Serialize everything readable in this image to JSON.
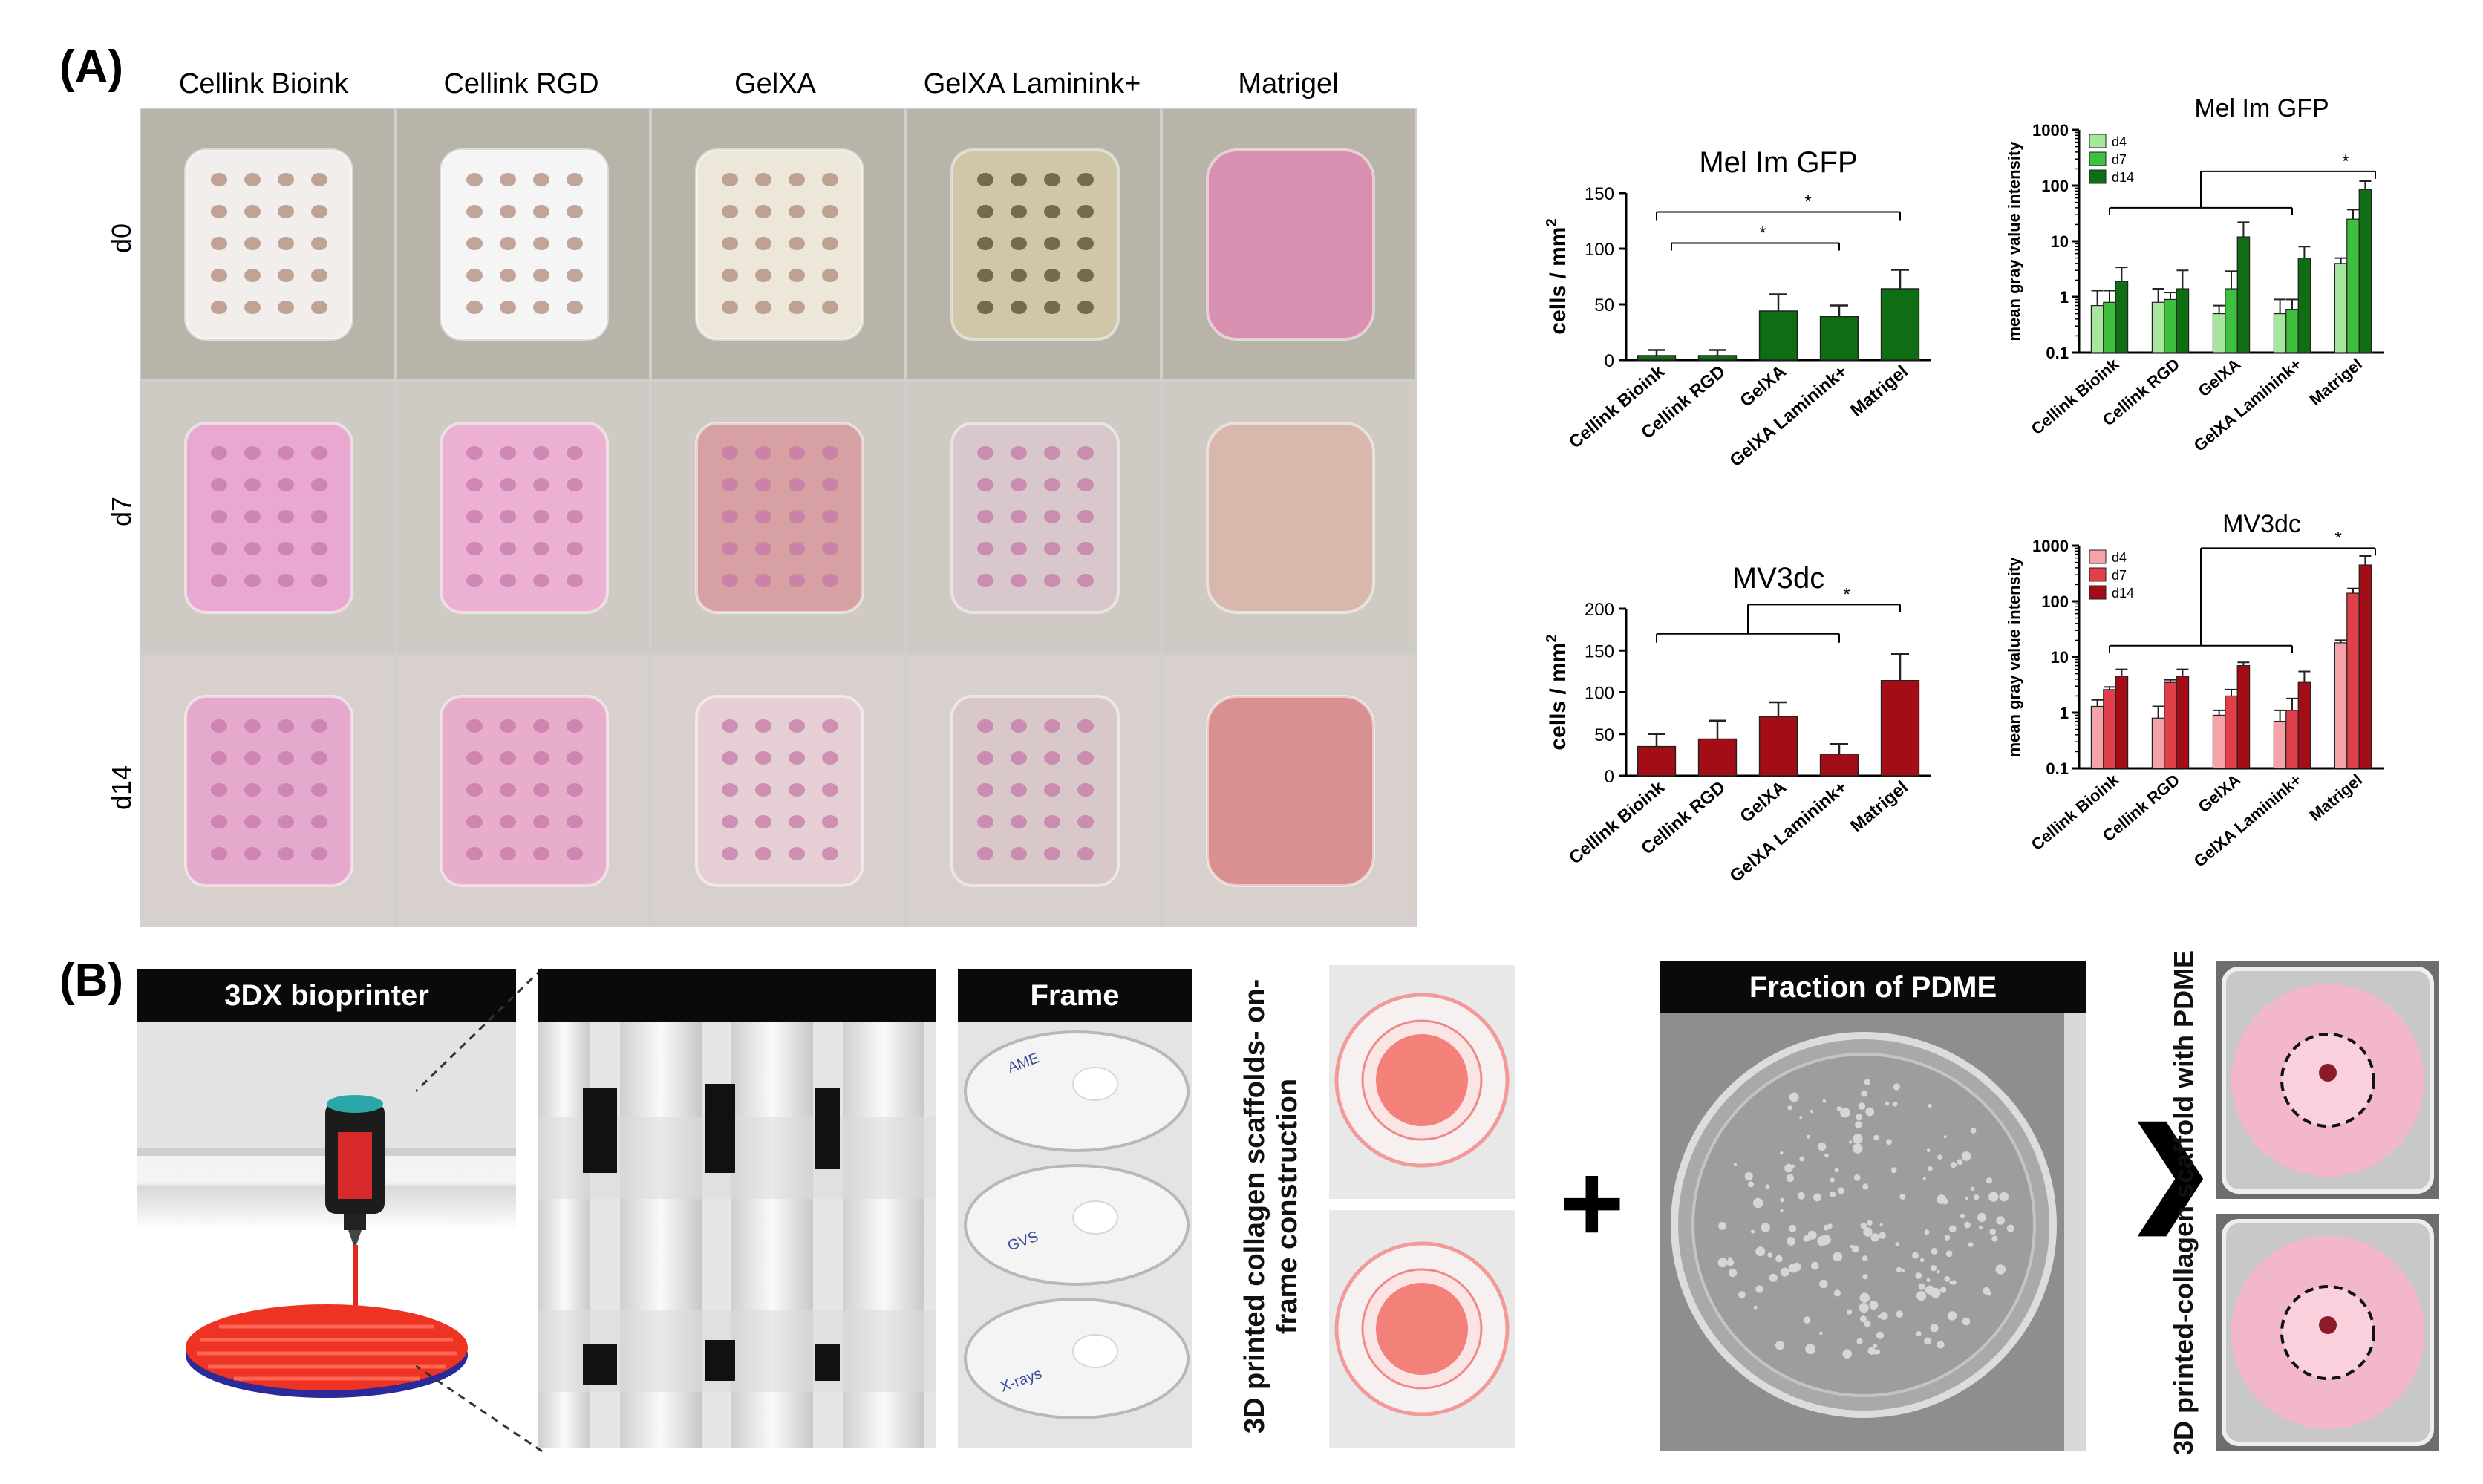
{
  "panel_a": {
    "label": "(A)",
    "columns": [
      "Cellink Bioink",
      "Cellink RGD",
      "GelXA",
      "GelXA Laminink+",
      "Matrigel"
    ],
    "rows": [
      "d0",
      "d7",
      "d14"
    ]
  },
  "panel_b": {
    "label": "(B)",
    "printer_header": "3DX bioprinter",
    "frame_header": "Frame",
    "construction_text": "3D printed collagen scaffolds- on-frame construction",
    "pdme_header": "Fraction of PDME",
    "plus": "+",
    "arrow": "❯",
    "result_text": "3D printed-collagen scaffold with PDME",
    "dish_notes": [
      "AME",
      "GVS",
      "X-rays"
    ]
  },
  "colors": {
    "green_light": "#a8e6a0",
    "green_mid": "#3fbf3f",
    "green_dark": "#0f6e14",
    "red_light": "#f4a3a8",
    "red_mid": "#e0404a",
    "red_dark": "#a30d16"
  },
  "chart_data": [
    {
      "type": "bar",
      "title": "Mel Im GFP",
      "ylabel": "cells / mm",
      "ylabel_sup": "2",
      "ylim": [
        0,
        150
      ],
      "yticks": [
        "0",
        "50",
        "100",
        "150"
      ],
      "categories": [
        "Cellink Bioink",
        "Cellink RGD",
        "GelXA",
        "GelXA Laminink+",
        "Matrigel"
      ],
      "values": [
        4,
        4,
        44,
        39,
        64
      ],
      "errors": [
        5,
        5,
        15,
        10,
        17
      ],
      "annotations": [
        "*",
        "*"
      ]
    },
    {
      "type": "bar",
      "title": "Mel Im GFP",
      "ylabel": "mean gray value intensity",
      "yscale": "log",
      "ylim": [
        0.1,
        1000
      ],
      "yticks": [
        "0.1",
        "1",
        "10",
        "100",
        "1000"
      ],
      "categories": [
        "Cellink Bioink",
        "Cellink RGD",
        "GelXA",
        "GelXA Laminink+",
        "Matrigel"
      ],
      "series": [
        {
          "name": "d4",
          "values": [
            0.7,
            0.8,
            0.5,
            0.5,
            4
          ],
          "errors": [
            0.6,
            0.6,
            0.2,
            0.4,
            1
          ]
        },
        {
          "name": "d7",
          "values": [
            0.8,
            0.9,
            1.4,
            0.6,
            25
          ],
          "errors": [
            0.5,
            0.3,
            1.5,
            0.3,
            12
          ]
        },
        {
          "name": "d14",
          "values": [
            1.9,
            1.4,
            12,
            5,
            85
          ],
          "errors": [
            1.5,
            1.6,
            10,
            3,
            35
          ]
        }
      ],
      "annotations": [
        "*"
      ]
    },
    {
      "type": "bar",
      "title": "MV3dc",
      "ylabel": "cells / mm",
      "ylabel_sup": "2",
      "ylim": [
        0,
        200
      ],
      "yticks": [
        "0",
        "50",
        "100",
        "150",
        "200"
      ],
      "categories": [
        "Cellink Bioink",
        "Cellink RGD",
        "GelXA",
        "GelXA Laminink+",
        "Matrigel"
      ],
      "values": [
        35,
        44,
        71,
        26,
        114
      ],
      "errors": [
        15,
        22,
        17,
        12,
        32
      ],
      "annotations": [
        "*"
      ]
    },
    {
      "type": "bar",
      "title": "MV3dc",
      "ylabel": "mean gray value intensity",
      "yscale": "log",
      "ylim": [
        0.1,
        1000
      ],
      "yticks": [
        "0.1",
        "1",
        "10",
        "100",
        "1000"
      ],
      "categories": [
        "Cellink Bioink",
        "Cellink RGD",
        "GelXA",
        "GelXA Laminink+",
        "Matrigel"
      ],
      "series": [
        {
          "name": "d4",
          "values": [
            1.3,
            0.8,
            0.9,
            0.7,
            18
          ],
          "errors": [
            0.4,
            0.5,
            0.2,
            0.4,
            2
          ]
        },
        {
          "name": "d7",
          "values": [
            2.6,
            3.5,
            2,
            1.1,
            140
          ],
          "errors": [
            0.3,
            0.4,
            0.6,
            0.7,
            30
          ]
        },
        {
          "name": "d14",
          "values": [
            4.5,
            4.5,
            7,
            3.5,
            450
          ],
          "errors": [
            1.5,
            1.5,
            1,
            2,
            200
          ]
        }
      ],
      "annotations": [
        "*"
      ]
    }
  ]
}
